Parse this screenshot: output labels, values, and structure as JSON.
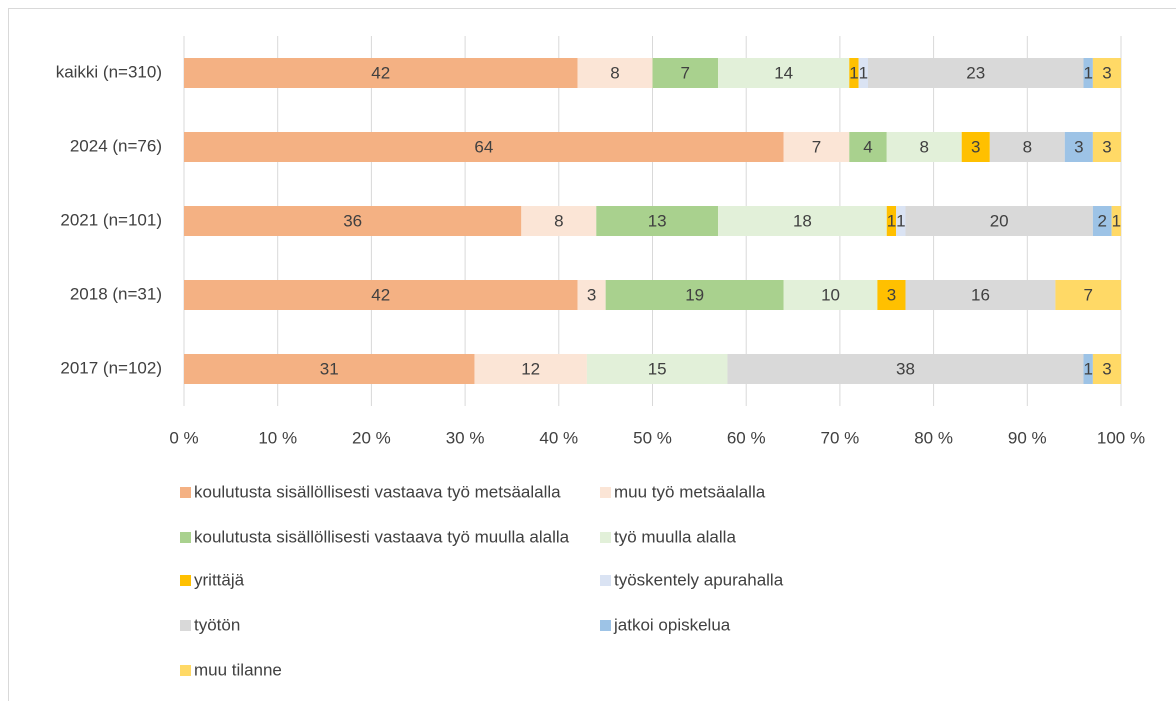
{
  "chart_data": {
    "type": "stacked-bar-horizontal",
    "categories": [
      "kaikki (n=310)",
      "2024 (n=76)",
      "2021 (n=101)",
      "2018 (n=31)",
      "2017 (n=102)"
    ],
    "series": [
      {
        "name": "koulutusta sisällöllisesti vastaava työ metsäalalla",
        "color": "#f4b183",
        "values": [
          42,
          64,
          36,
          42,
          31
        ]
      },
      {
        "name": "muu työ metsäalalla",
        "color": "#fbe5d6",
        "values": [
          8,
          7,
          8,
          3,
          12
        ]
      },
      {
        "name": "koulutusta sisällöllisesti vastaava työ muulla alalla",
        "color": "#a9d18e",
        "values": [
          7,
          4,
          13,
          19,
          null
        ]
      },
      {
        "name": "työ muulla alalla",
        "color": "#e2f0d9",
        "values": [
          14,
          8,
          18,
          10,
          15
        ]
      },
      {
        "name": "yrittäjä",
        "color": "#ffc000",
        "values": [
          1,
          3,
          1,
          3,
          null
        ]
      },
      {
        "name": "työskentely apurahalla",
        "color": "#dae3f3",
        "values": [
          1,
          null,
          1,
          null,
          null
        ]
      },
      {
        "name": "työtön",
        "color": "#d9d9d9",
        "values": [
          23,
          8,
          20,
          16,
          38
        ]
      },
      {
        "name": "jatkoi opiskelua",
        "color": "#9dc3e6",
        "values": [
          1,
          3,
          2,
          null,
          1
        ]
      },
      {
        "name": "muu tilanne",
        "color": "#ffd966",
        "values": [
          3,
          3,
          1,
          7,
          3
        ]
      }
    ],
    "xlim": [
      0,
      100
    ],
    "xticks": [
      {
        "value": 0,
        "label": "0 %"
      },
      {
        "value": 10,
        "label": "10 %"
      },
      {
        "value": 20,
        "label": "20 %"
      },
      {
        "value": 30,
        "label": "30 %"
      },
      {
        "value": 40,
        "label": "40 %"
      },
      {
        "value": 50,
        "label": "50 %"
      },
      {
        "value": 60,
        "label": "60 %"
      },
      {
        "value": 70,
        "label": "70 %"
      },
      {
        "value": 80,
        "label": "80 %"
      },
      {
        "value": 90,
        "label": "90 %"
      },
      {
        "value": 100,
        "label": "100 %"
      }
    ],
    "grid": true,
    "legend": "bottom"
  }
}
